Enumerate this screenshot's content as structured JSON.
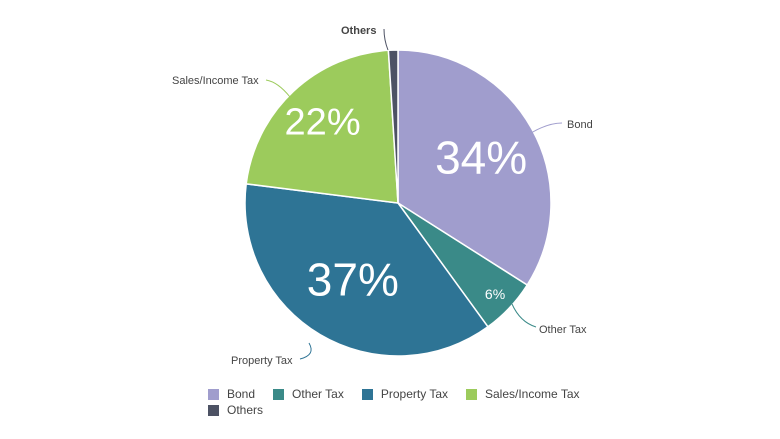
{
  "chart_data": {
    "type": "pie",
    "slices": [
      {
        "label": "Bond",
        "value": 34,
        "display": "34%",
        "color": "#a09dcd"
      },
      {
        "label": "Other Tax",
        "value": 6,
        "display": "6%",
        "color": "#3a8a88"
      },
      {
        "label": "Property Tax",
        "value": 37,
        "display": "37%",
        "color": "#2e7495"
      },
      {
        "label": "Sales/Income Tax",
        "value": 22,
        "display": "22%",
        "color": "#9ccb5c"
      },
      {
        "label": "Others",
        "value": 1,
        "display": "",
        "color": "#4d5264"
      }
    ],
    "legend_position": "bottom",
    "title": ""
  }
}
